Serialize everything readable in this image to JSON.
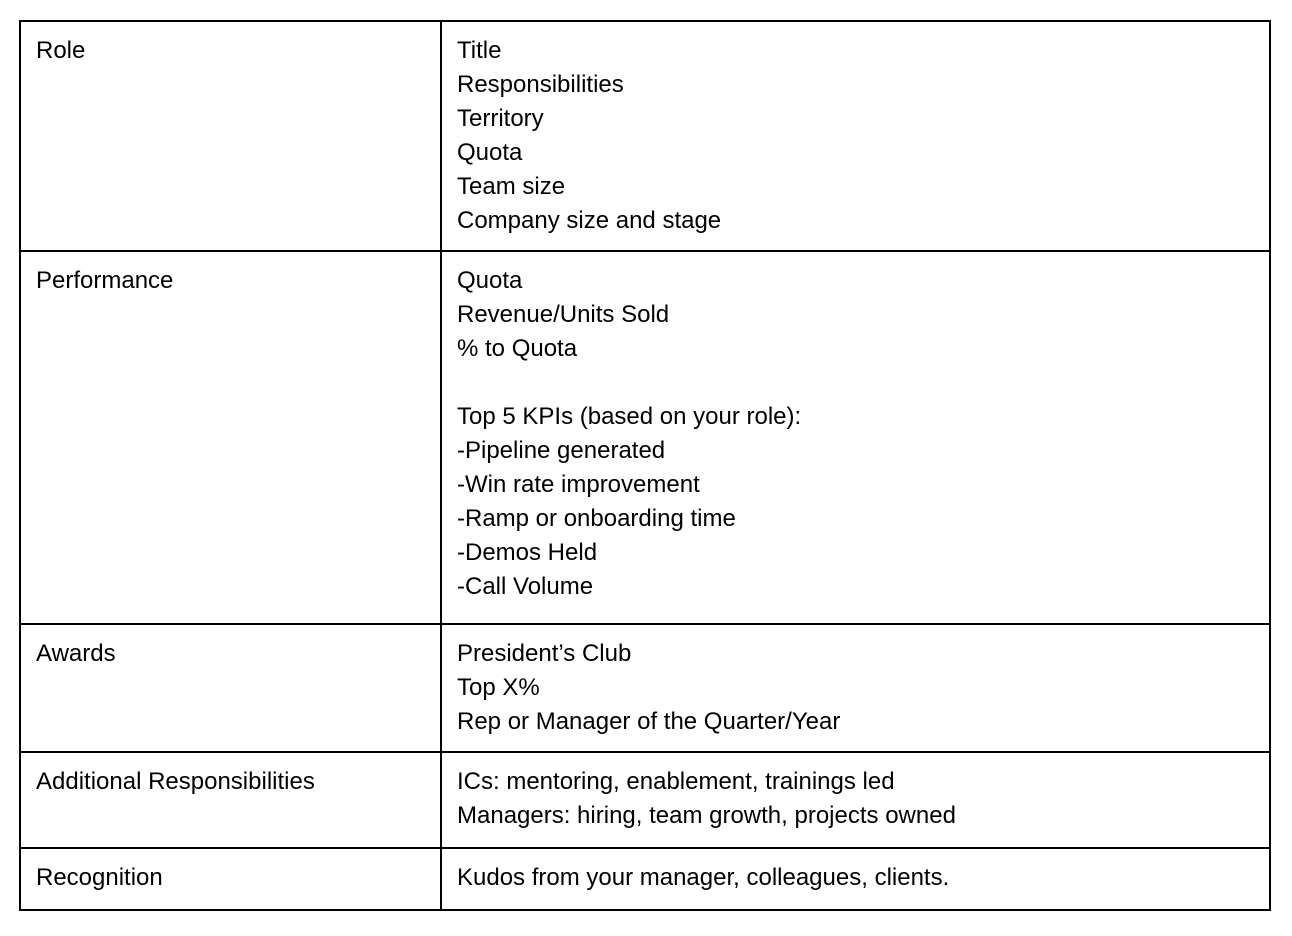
{
  "colors": {
    "background": "#ffffff",
    "border": "#000000",
    "text": "#000000"
  },
  "table": {
    "description": "Two-column document table of brag-sheet categories and details",
    "rows": [
      {
        "label": "Role",
        "lines": [
          "Title",
          "Responsibilities",
          "Territory",
          "Quota",
          "Team size",
          "Company size and stage"
        ]
      },
      {
        "label": "Performance",
        "lines": [
          "Quota",
          "Revenue/Units Sold",
          "% to Quota",
          "",
          "Top 5 KPIs (based on your role):",
          "-Pipeline generated",
          "-Win rate improvement",
          "-Ramp or onboarding time",
          "-Demos Held",
          "-Call Volume"
        ]
      },
      {
        "label": "Awards",
        "lines": [
          "President’s Club",
          "Top X%",
          "Rep or Manager of the Quarter/Year"
        ]
      },
      {
        "label": "Additional Responsibilities",
        "lines": [
          "ICs: mentoring, enablement, trainings led",
          "Managers: hiring, team growth, projects owned"
        ]
      },
      {
        "label": "Recognition",
        "lines": [
          "Kudos from your manager, colleagues, clients."
        ]
      }
    ]
  }
}
